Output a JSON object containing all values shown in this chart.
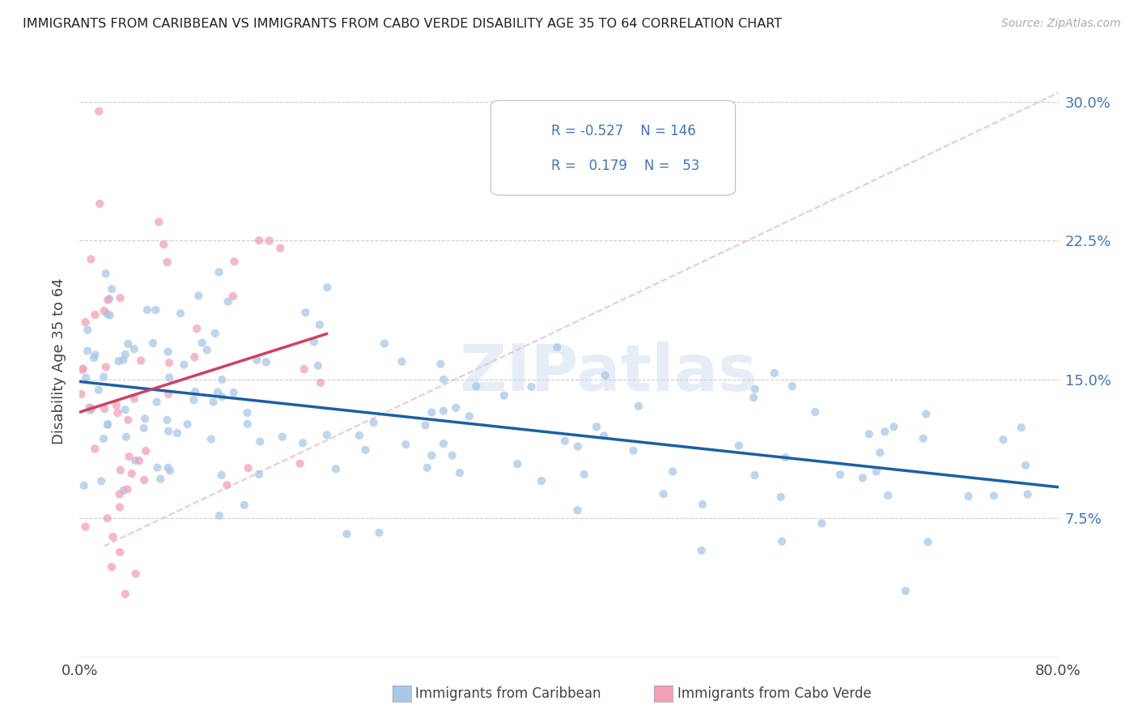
{
  "title": "IMMIGRANTS FROM CARIBBEAN VS IMMIGRANTS FROM CABO VERDE DISABILITY AGE 35 TO 64 CORRELATION CHART",
  "source": "Source: ZipAtlas.com",
  "ylabel": "Disability Age 35 to 64",
  "yticks": [
    "7.5%",
    "15.0%",
    "22.5%",
    "30.0%"
  ],
  "ytick_vals": [
    0.075,
    0.15,
    0.225,
    0.3
  ],
  "xlim": [
    0.0,
    0.8
  ],
  "ylim": [
    0.0,
    0.32
  ],
  "legend_r_caribbean": "-0.527",
  "legend_n_caribbean": "146",
  "legend_r_caboverde": "0.179",
  "legend_n_caboverde": "53",
  "caribbean_color": "#a8c8e8",
  "caboverde_color": "#f4a0b8",
  "caribbean_line_color": "#1a5fa8",
  "caboverde_line_color": "#d04060",
  "caboverde_dashed_color": "#e8b0c0",
  "watermark": "ZIPatlas",
  "marker_size": 55,
  "alpha": 0.75,
  "seed_caribbean": 42,
  "seed_caboverde": 99,
  "caribbean_R": -0.527,
  "caribbean_N": 146,
  "caboverde_R": 0.179,
  "caboverde_N": 53
}
